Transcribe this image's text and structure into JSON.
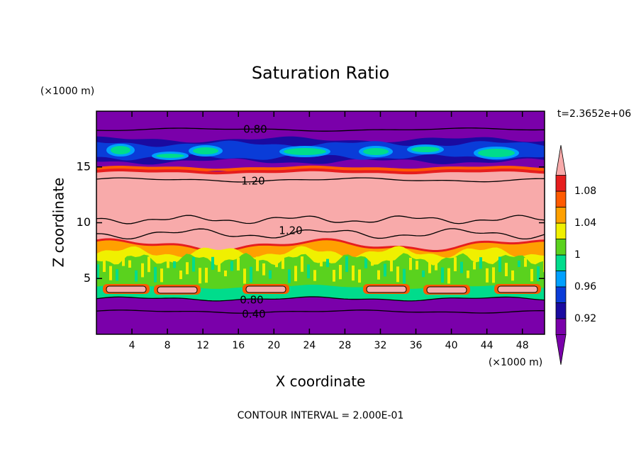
{
  "chart_data": {
    "type": "contour",
    "title": "Saturation Ratio",
    "x_label": "X coordinate",
    "y_label": "Z coordinate",
    "x_unit": "(×1000 m)",
    "y_unit": "(×1000 m)",
    "time_label": "t=2.3652e+06",
    "footer": "CONTOUR INTERVAL = 2.000E-01",
    "xlim": [
      0,
      50.5
    ],
    "xticks": [
      4,
      8,
      12,
      16,
      20,
      24,
      28,
      32,
      36,
      40,
      44,
      48
    ],
    "ylim": [
      0,
      20
    ],
    "yticks": [
      5,
      10,
      15
    ],
    "contour_labels": [
      "0.80",
      "1.20",
      "1.20",
      "0.80",
      "0.40"
    ],
    "colorbar": {
      "levels": [
        0.9,
        0.92,
        0.94,
        0.96,
        0.98,
        1,
        1.02,
        1.04,
        1.06,
        1.08,
        1.1
      ],
      "ticks": [
        0.92,
        0.96,
        1,
        1.04,
        1.08
      ],
      "colors": [
        "#7a00aa",
        "#7a00aa",
        "#1a0aa0",
        "#0a3cd8",
        "#00a0ff",
        "#00dc8c",
        "#5ad21e",
        "#f0f000",
        "#ffa000",
        "#ff5a00",
        "#e61e1e",
        "#f8aaaa"
      ]
    }
  }
}
